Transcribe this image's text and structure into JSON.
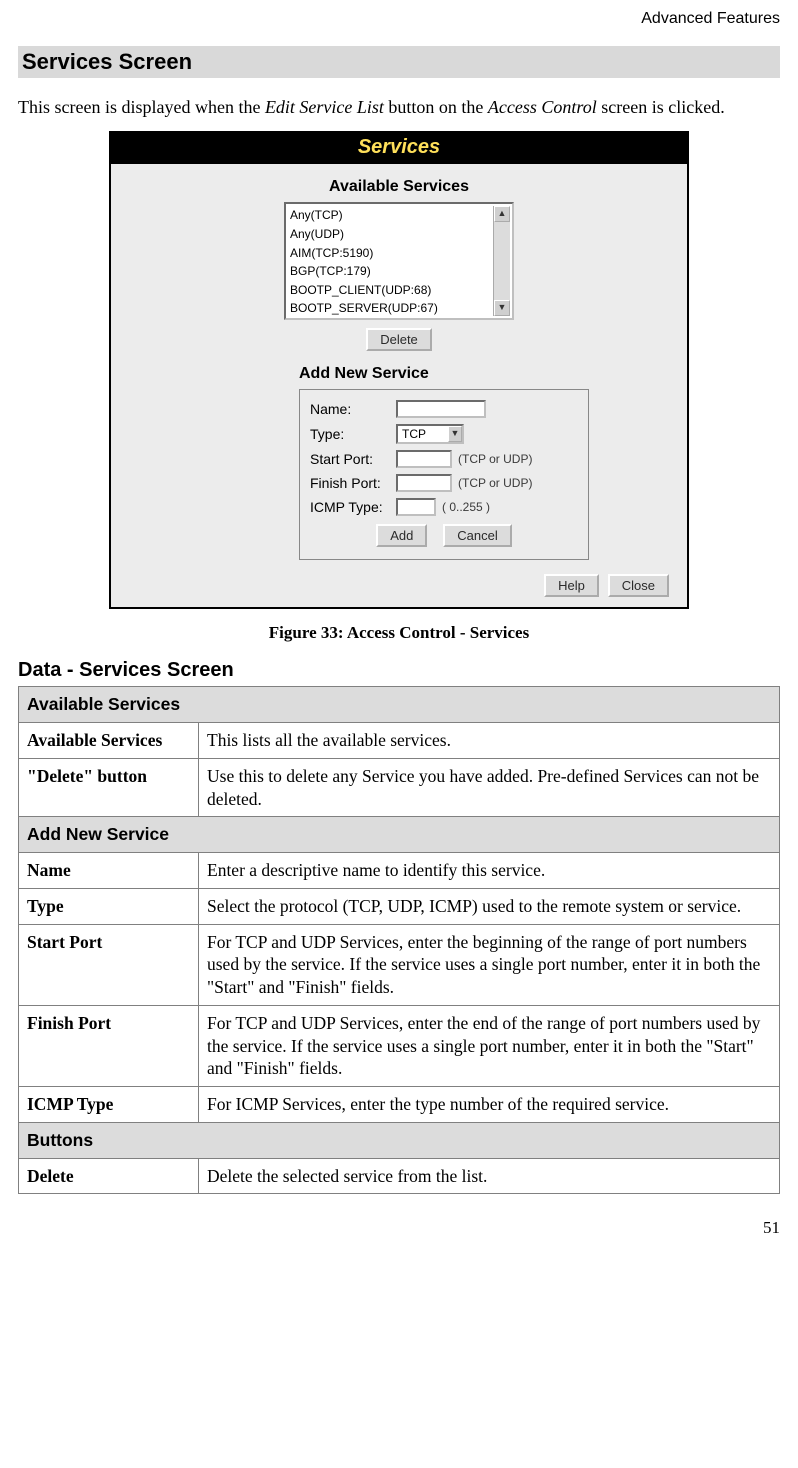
{
  "header": {
    "breadcrumb": "Advanced Features"
  },
  "title": "Services Screen",
  "intro": {
    "prefix": "This screen is displayed when the ",
    "em1": "Edit Service List",
    "mid": " button on the ",
    "em2": "Access Control",
    "suffix": " screen is clicked."
  },
  "screenshot": {
    "titlebar": "Services",
    "available_heading": "Available Services",
    "list_items": [
      "Any(TCP)",
      "Any(UDP)",
      "AIM(TCP:5190)",
      "BGP(TCP:179)",
      "BOOTP_CLIENT(UDP:68)",
      "BOOTP_SERVER(UDP:67)"
    ],
    "delete_btn": "Delete",
    "add_heading": "Add New Service",
    "form": {
      "name_label": "Name:",
      "type_label": "Type:",
      "type_value": "TCP",
      "start_label": "Start Port:",
      "finish_label": "Finish Port:",
      "port_hint": "(TCP or UDP)",
      "icmp_label": "ICMP Type:",
      "icmp_hint": "( 0..255 )",
      "add_btn": "Add",
      "cancel_btn": "Cancel"
    },
    "help_btn": "Help",
    "close_btn": "Close"
  },
  "figcaption": "Figure 33: Access Control - Services",
  "data_title": "Data - Services Screen",
  "table": {
    "sections": [
      {
        "header": "Available Services",
        "rows": [
          {
            "label": "Available Services",
            "desc": "This lists all the available services."
          },
          {
            "label": "\"Delete\" button",
            "desc": "Use this to delete any Service you have added. Pre-defined Services can not be deleted."
          }
        ]
      },
      {
        "header": "Add New Service",
        "rows": [
          {
            "label": "Name",
            "desc": "Enter a descriptive name to identify this service."
          },
          {
            "label": "Type",
            "desc": "Select the protocol (TCP, UDP, ICMP) used to the remote system or service."
          },
          {
            "label": "Start Port",
            "desc": "For TCP and UDP Services, enter the beginning of the range of port numbers used by the service. If the service uses a single port number, enter it in both the \"Start\" and \"Finish\" fields."
          },
          {
            "label": "Finish Port",
            "desc": "For TCP and UDP Services, enter the end of the range of port numbers used by the service. If the service uses a single port number, enter it in both the \"Start\" and \"Finish\" fields."
          },
          {
            "label": "ICMP Type",
            "desc": "For ICMP Services, enter the type number of the required service."
          }
        ]
      },
      {
        "header": "Buttons",
        "rows": [
          {
            "label": "Delete",
            "desc": "Delete the selected service from the list."
          }
        ]
      }
    ]
  },
  "pagenum": "51",
  "colors": {
    "section_bg": "#d9d9d9",
    "titlebar_bg": "#000000",
    "titlebar_fg": "#ffe05a",
    "panel_bg": "#ececec",
    "border": "#808080"
  }
}
